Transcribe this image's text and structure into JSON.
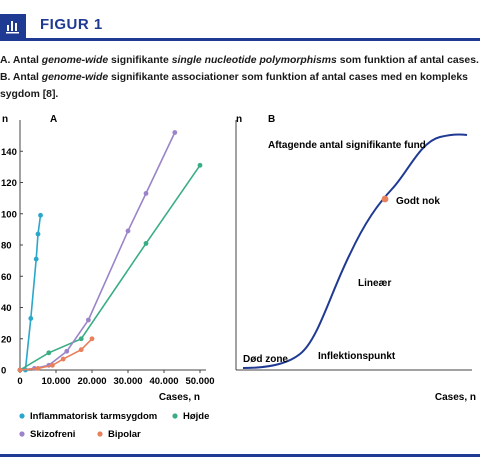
{
  "header": {
    "title": "FIGUR 1",
    "icon": "bar-chart-icon",
    "accent_color": "#1f3a93"
  },
  "caption": {
    "a_prefix": "A. Antal ",
    "a_em1": "genome-wide",
    "a_mid": " signifikante ",
    "a_em2": "single nucleotide polymorphisms",
    "a_rest": " som funktion af antal cases. ",
    "b_prefix": "B. Antal ",
    "b_em": "genome-wide",
    "b_rest": " signifikante associationer som funktion af antal cases med en kompleks sygdom [8]."
  },
  "chart_data": [
    {
      "panel": "A",
      "type": "line",
      "ylabel": "n",
      "xlabel": "Cases, n",
      "xlim": [
        0,
        50000
      ],
      "ylim": [
        0,
        160
      ],
      "x_ticks": [
        "0",
        "10.000",
        "20.000",
        "30.000",
        "40.000",
        "50.000"
      ],
      "x_tick_values": [
        0,
        10000,
        20000,
        30000,
        40000,
        50000
      ],
      "y_ticks": [
        "0",
        "20",
        "40",
        "60",
        "80",
        "100",
        "120",
        "140"
      ],
      "y_tick_values": [
        0,
        20,
        40,
        60,
        80,
        100,
        120,
        140
      ],
      "grid": false,
      "legend_position": "bottom",
      "series": [
        {
          "name": "Inflammatorisk tarmsygdom",
          "color": "#2aa7c9",
          "points": [
            [
              0,
              0
            ],
            [
              1500,
              0
            ],
            [
              3000,
              33
            ],
            [
              4500,
              71
            ],
            [
              5000,
              87
            ],
            [
              5700,
              99
            ]
          ]
        },
        {
          "name": "Højde",
          "color": "#3aad84",
          "points": [
            [
              0,
              0
            ],
            [
              8000,
              11
            ],
            [
              17000,
              20
            ],
            [
              35000,
              81
            ],
            [
              50000,
              131
            ]
          ]
        },
        {
          "name": "Skizofreni",
          "color": "#9b84c9",
          "points": [
            [
              0,
              0
            ],
            [
              4000,
              1
            ],
            [
              8000,
              3
            ],
            [
              13000,
              12
            ],
            [
              19000,
              32
            ],
            [
              30000,
              89
            ],
            [
              35000,
              113
            ],
            [
              43000,
              152
            ]
          ]
        },
        {
          "name": "Bipolar",
          "color": "#e8805c",
          "points": [
            [
              0,
              0
            ],
            [
              5000,
              1
            ],
            [
              9000,
              3
            ],
            [
              12000,
              7
            ],
            [
              17000,
              13
            ],
            [
              20000,
              20
            ]
          ]
        }
      ]
    },
    {
      "panel": "B",
      "type": "line",
      "ylabel": "n",
      "xlabel": "Cases, n",
      "grid": false,
      "curve_color": "#1f3a93",
      "marker_color": "#e8805c",
      "annotations": [
        "Aftagende antal signifikante fund",
        "Godt nok",
        "Lineær",
        "Inflektionspunkt",
        "Død zone"
      ]
    }
  ]
}
